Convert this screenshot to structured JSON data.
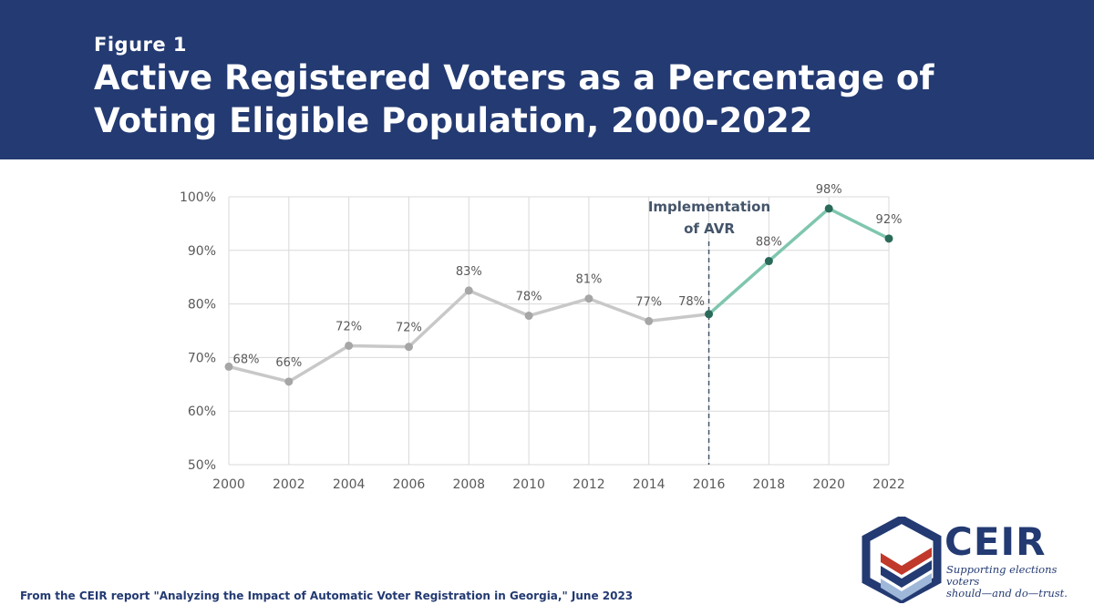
{
  "header": {
    "figure_label": "Figure 1",
    "title": "Active Registered Voters as a Percentage of Voting Eligible Population, 2000-2022"
  },
  "chart_data": {
    "type": "line",
    "title": "",
    "xlabel": "",
    "ylabel": "",
    "x": [
      "2000",
      "2002",
      "2004",
      "2006",
      "2008",
      "2010",
      "2012",
      "2014",
      "2016",
      "2018",
      "2020",
      "2022"
    ],
    "series": [
      {
        "values": [
          68.3,
          65.5,
          72.2,
          72.0,
          82.5,
          77.8,
          81.0,
          76.8,
          78.1,
          88.0,
          97.8,
          92.2
        ],
        "labels": [
          "68%",
          "66%",
          "72%",
          "72%",
          "83%",
          "78%",
          "81%",
          "77%",
          "78%",
          "88%",
          "98%",
          "92%"
        ]
      }
    ],
    "ylim": [
      50,
      100
    ],
    "y_ticks": [
      "50%",
      "60%",
      "70%",
      "80%",
      "90%",
      "100%"
    ],
    "grid": true,
    "colors": {
      "pre_avr": "#c8c8c8",
      "post_avr": "#7fc6ae",
      "post_avr_marker": "#2a6a58",
      "marker_pre": "#a6a6a6",
      "vline": "#44546a"
    },
    "annotation": {
      "x": "2016",
      "lines": [
        "Implementation",
        "of AVR"
      ]
    }
  },
  "footer": {
    "source": "From the CEIR report \"Analyzing the Impact of Automatic Voter Registration in Georgia,\" June 2023"
  },
  "logo": {
    "name": "CEIR",
    "tagline_line1": "Supporting elections voters",
    "tagline_line2": "should—and do—trust.",
    "colors": {
      "navy": "#233a72",
      "red": "#c0392b",
      "lightblue": "#9fb8d9"
    }
  }
}
